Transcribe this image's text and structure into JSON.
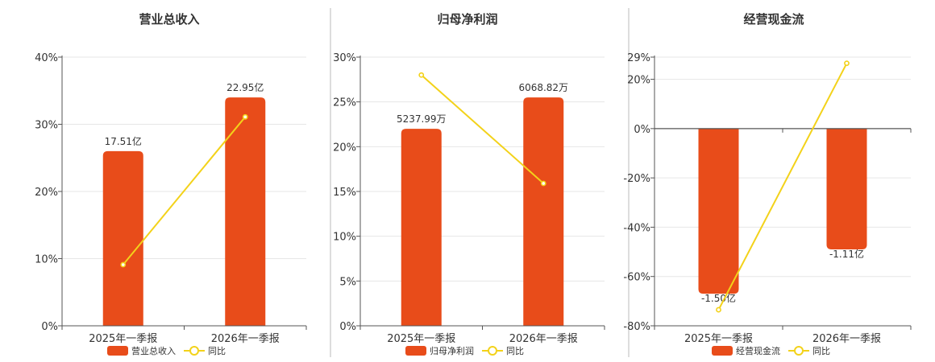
{
  "colors": {
    "bar": "#e84c1a",
    "line": "#f3d21a",
    "axis": "#555555",
    "grid": "#e6e6e6",
    "text": "#333333",
    "divider": "#bbbbbb"
  },
  "chart_data": [
    {
      "type": "bar",
      "title": "营业总收入",
      "categories": [
        "2025年一季报",
        "2026年一季报"
      ],
      "ylim": [
        0,
        40
      ],
      "ticks": [
        0,
        10,
        20,
        30,
        40
      ],
      "tick_labels": [
        "0%",
        "10%",
        "20%",
        "30%",
        "40%"
      ],
      "zero_line": false,
      "grid": true,
      "legend_position": "bottom",
      "series": [
        {
          "name": "营业总收入",
          "kind": "bar",
          "values": [
            26,
            34
          ],
          "labels": [
            "17.51亿",
            "22.95亿"
          ]
        },
        {
          "name": "同比",
          "kind": "line",
          "values": [
            9.1,
            31.1
          ]
        }
      ]
    },
    {
      "type": "bar",
      "title": "归母净利润",
      "categories": [
        "2025年一季报",
        "2026年一季报"
      ],
      "ylim": [
        0,
        30
      ],
      "ticks": [
        0,
        5,
        10,
        15,
        20,
        25,
        30
      ],
      "tick_labels": [
        "0%",
        "5%",
        "10%",
        "15%",
        "20%",
        "25%",
        "30%"
      ],
      "zero_line": false,
      "grid": true,
      "legend_position": "bottom",
      "series": [
        {
          "name": "归母净利润",
          "kind": "bar",
          "values": [
            22,
            25.5
          ],
          "labels": [
            "5237.99万",
            "6068.82万"
          ]
        },
        {
          "name": "同比",
          "kind": "line",
          "values": [
            28,
            15.9
          ]
        }
      ]
    },
    {
      "type": "bar",
      "title": "经营现金流",
      "categories": [
        "2025年一季报",
        "2026年一季报"
      ],
      "ylim": [
        -80,
        29
      ],
      "ticks": [
        -80,
        -60,
        -40,
        -20,
        0,
        20,
        29
      ],
      "tick_labels": [
        "-80%",
        "-60%",
        "-40%",
        "-20%",
        "0%",
        "20%",
        "29%"
      ],
      "zero_line": true,
      "grid": true,
      "legend_position": "bottom",
      "series": [
        {
          "name": "经营现金流",
          "kind": "bar",
          "values": [
            -67,
            -49
          ],
          "labels": [
            "-1.50亿",
            "-1.11亿"
          ]
        },
        {
          "name": "同比",
          "kind": "line",
          "values": [
            -73.5,
            26.5
          ]
        }
      ]
    }
  ]
}
